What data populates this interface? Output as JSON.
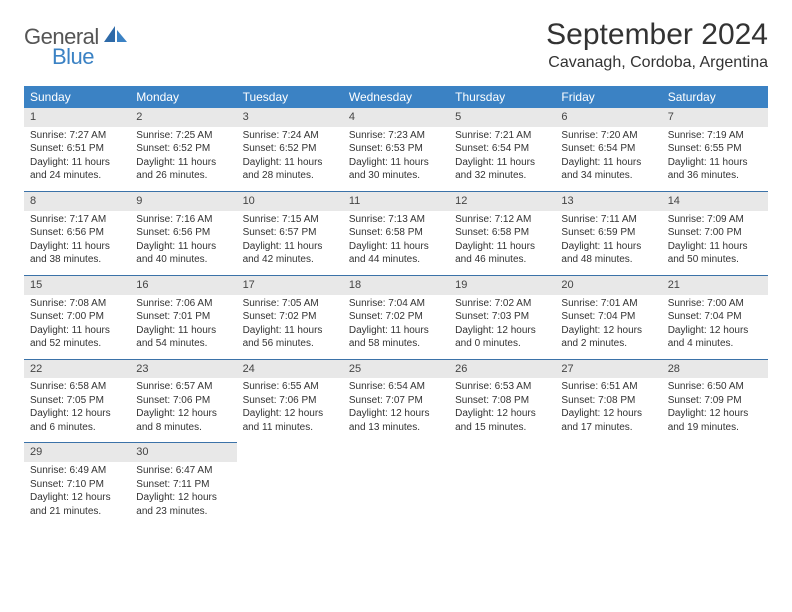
{
  "brand": {
    "part1": "General",
    "part2": "Blue",
    "color_primary": "#3b82c4"
  },
  "title": "September 2024",
  "location": "Cavanagh, Cordoba, Argentina",
  "day_headers": [
    "Sunday",
    "Monday",
    "Tuesday",
    "Wednesday",
    "Thursday",
    "Friday",
    "Saturday"
  ],
  "colors": {
    "header_bg": "#3b82c4",
    "header_text": "#ffffff",
    "daynum_bg": "#e8e8e8",
    "cell_border": "#3b72a8",
    "text": "#333333",
    "background": "#ffffff"
  },
  "fonts": {
    "title_size": 30,
    "location_size": 16,
    "header_size": 12,
    "cell_size": 10
  },
  "days": [
    {
      "n": 1,
      "sunrise": "7:27 AM",
      "sunset": "6:51 PM",
      "daylight": "11 hours and 24 minutes."
    },
    {
      "n": 2,
      "sunrise": "7:25 AM",
      "sunset": "6:52 PM",
      "daylight": "11 hours and 26 minutes."
    },
    {
      "n": 3,
      "sunrise": "7:24 AM",
      "sunset": "6:52 PM",
      "daylight": "11 hours and 28 minutes."
    },
    {
      "n": 4,
      "sunrise": "7:23 AM",
      "sunset": "6:53 PM",
      "daylight": "11 hours and 30 minutes."
    },
    {
      "n": 5,
      "sunrise": "7:21 AM",
      "sunset": "6:54 PM",
      "daylight": "11 hours and 32 minutes."
    },
    {
      "n": 6,
      "sunrise": "7:20 AM",
      "sunset": "6:54 PM",
      "daylight": "11 hours and 34 minutes."
    },
    {
      "n": 7,
      "sunrise": "7:19 AM",
      "sunset": "6:55 PM",
      "daylight": "11 hours and 36 minutes."
    },
    {
      "n": 8,
      "sunrise": "7:17 AM",
      "sunset": "6:56 PM",
      "daylight": "11 hours and 38 minutes."
    },
    {
      "n": 9,
      "sunrise": "7:16 AM",
      "sunset": "6:56 PM",
      "daylight": "11 hours and 40 minutes."
    },
    {
      "n": 10,
      "sunrise": "7:15 AM",
      "sunset": "6:57 PM",
      "daylight": "11 hours and 42 minutes."
    },
    {
      "n": 11,
      "sunrise": "7:13 AM",
      "sunset": "6:58 PM",
      "daylight": "11 hours and 44 minutes."
    },
    {
      "n": 12,
      "sunrise": "7:12 AM",
      "sunset": "6:58 PM",
      "daylight": "11 hours and 46 minutes."
    },
    {
      "n": 13,
      "sunrise": "7:11 AM",
      "sunset": "6:59 PM",
      "daylight": "11 hours and 48 minutes."
    },
    {
      "n": 14,
      "sunrise": "7:09 AM",
      "sunset": "7:00 PM",
      "daylight": "11 hours and 50 minutes."
    },
    {
      "n": 15,
      "sunrise": "7:08 AM",
      "sunset": "7:00 PM",
      "daylight": "11 hours and 52 minutes."
    },
    {
      "n": 16,
      "sunrise": "7:06 AM",
      "sunset": "7:01 PM",
      "daylight": "11 hours and 54 minutes."
    },
    {
      "n": 17,
      "sunrise": "7:05 AM",
      "sunset": "7:02 PM",
      "daylight": "11 hours and 56 minutes."
    },
    {
      "n": 18,
      "sunrise": "7:04 AM",
      "sunset": "7:02 PM",
      "daylight": "11 hours and 58 minutes."
    },
    {
      "n": 19,
      "sunrise": "7:02 AM",
      "sunset": "7:03 PM",
      "daylight": "12 hours and 0 minutes."
    },
    {
      "n": 20,
      "sunrise": "7:01 AM",
      "sunset": "7:04 PM",
      "daylight": "12 hours and 2 minutes."
    },
    {
      "n": 21,
      "sunrise": "7:00 AM",
      "sunset": "7:04 PM",
      "daylight": "12 hours and 4 minutes."
    },
    {
      "n": 22,
      "sunrise": "6:58 AM",
      "sunset": "7:05 PM",
      "daylight": "12 hours and 6 minutes."
    },
    {
      "n": 23,
      "sunrise": "6:57 AM",
      "sunset": "7:06 PM",
      "daylight": "12 hours and 8 minutes."
    },
    {
      "n": 24,
      "sunrise": "6:55 AM",
      "sunset": "7:06 PM",
      "daylight": "12 hours and 11 minutes."
    },
    {
      "n": 25,
      "sunrise": "6:54 AM",
      "sunset": "7:07 PM",
      "daylight": "12 hours and 13 minutes."
    },
    {
      "n": 26,
      "sunrise": "6:53 AM",
      "sunset": "7:08 PM",
      "daylight": "12 hours and 15 minutes."
    },
    {
      "n": 27,
      "sunrise": "6:51 AM",
      "sunset": "7:08 PM",
      "daylight": "12 hours and 17 minutes."
    },
    {
      "n": 28,
      "sunrise": "6:50 AM",
      "sunset": "7:09 PM",
      "daylight": "12 hours and 19 minutes."
    },
    {
      "n": 29,
      "sunrise": "6:49 AM",
      "sunset": "7:10 PM",
      "daylight": "12 hours and 21 minutes."
    },
    {
      "n": 30,
      "sunrise": "6:47 AM",
      "sunset": "7:11 PM",
      "daylight": "12 hours and 23 minutes."
    }
  ],
  "labels": {
    "sunrise": "Sunrise:",
    "sunset": "Sunset:",
    "daylight": "Daylight:"
  },
  "start_offset": 0,
  "total_cells": 35
}
